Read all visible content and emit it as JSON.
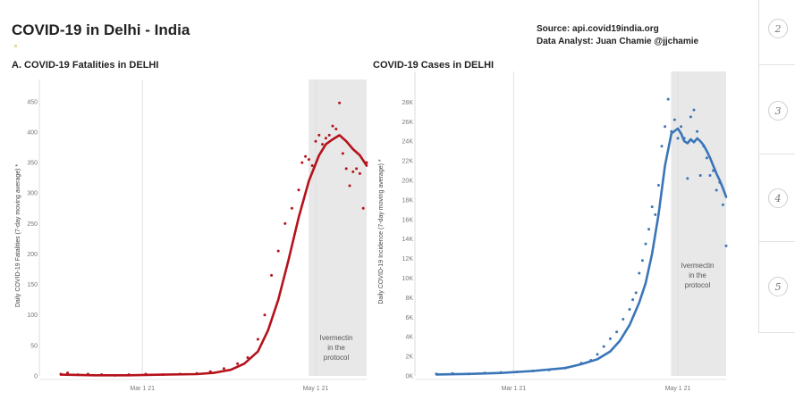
{
  "header": {
    "title": "COVID-19 in Delhi - India",
    "source_line": "Source: api.covid19india.org",
    "analyst_line": "Data Analyst:  Juan Chamie @jjchamie"
  },
  "sidebar": {
    "pages": [
      "2",
      "3",
      "4",
      "5"
    ]
  },
  "chart_data": [
    {
      "type": "line",
      "title": "A. COVID-19 Fatalities in DELHI",
      "xlabel": "",
      "ylabel": "Daily COVID-19 Fatalities (7-day moving average) *",
      "x_ticks": [
        "Mar 1 21",
        "May 1 21"
      ],
      "ylim": [
        0,
        460
      ],
      "y_ticks": [
        0,
        50,
        100,
        150,
        200,
        250,
        300,
        350,
        400,
        450
      ],
      "y_tick_labels": [
        "0",
        "50",
        "100",
        "150",
        "200",
        "250",
        "300",
        "350",
        "400",
        "450"
      ],
      "grid": "vertical reference lines at tick dates",
      "color": "#b5121b",
      "annotation": {
        "lines": [
          "Ivermectin",
          "in the",
          "protocol"
        ],
        "shaded_from_day": 74
      },
      "series": [
        {
          "kind": "points",
          "x": [
            0,
            2,
            5,
            8,
            12,
            16,
            20,
            25,
            30,
            35,
            40,
            44,
            48,
            52,
            55,
            58,
            60,
            62,
            64,
            66,
            68,
            70,
            71,
            72,
            73,
            74,
            75,
            76,
            77,
            78,
            79,
            80,
            81,
            82,
            83,
            84,
            85,
            86,
            87,
            88,
            89,
            90
          ],
          "y": [
            3,
            5,
            2,
            3,
            2,
            1,
            2,
            3,
            2,
            3,
            4,
            7,
            12,
            20,
            30,
            60,
            100,
            165,
            205,
            250,
            275,
            305,
            350,
            360,
            355,
            345,
            385,
            395,
            380,
            390,
            395,
            410,
            405,
            448,
            365,
            340,
            312,
            335,
            340,
            332,
            275,
            350
          ]
        },
        {
          "kind": "line",
          "x": [
            0,
            10,
            20,
            30,
            40,
            45,
            50,
            54,
            58,
            61,
            64,
            67,
            70,
            73,
            76,
            78,
            80,
            82,
            84,
            86,
            88,
            90
          ],
          "y": [
            2,
            1,
            1,
            2,
            3,
            5,
            10,
            20,
            40,
            75,
            125,
            190,
            260,
            320,
            362,
            380,
            388,
            395,
            385,
            372,
            362,
            345
          ]
        }
      ]
    },
    {
      "type": "line",
      "title": "COVID-19 Cases in DELHI",
      "xlabel": "",
      "ylabel": "Daily COVID-19 Incidence (7-day moving average) *",
      "x_ticks": [
        "Mar 1 21",
        "May 1 21"
      ],
      "ylim": [
        0,
        29500
      ],
      "y_ticks": [
        0,
        2000,
        4000,
        6000,
        8000,
        10000,
        12000,
        14000,
        16000,
        18000,
        20000,
        22000,
        24000,
        26000,
        28000
      ],
      "y_tick_labels": [
        "0K",
        "2K",
        "4K",
        "6K",
        "8K",
        "10K",
        "12K",
        "14K",
        "16K",
        "18K",
        "20K",
        "22K",
        "24K",
        "26K",
        "28K"
      ],
      "grid": "vertical reference lines at tick dates",
      "color": "#3a75b8",
      "annotation": {
        "lines": [
          "Ivermectin",
          "in the",
          "protocol"
        ],
        "shaded_from_day": 74
      },
      "series": [
        {
          "kind": "points",
          "x": [
            0,
            5,
            10,
            15,
            20,
            25,
            30,
            35,
            40,
            45,
            48,
            50,
            52,
            54,
            56,
            58,
            60,
            61,
            62,
            63,
            64,
            65,
            66,
            67,
            68,
            69,
            70,
            71,
            72,
            73,
            74,
            75,
            76,
            77,
            78,
            79,
            80,
            81,
            82,
            83,
            84,
            85,
            86,
            87,
            88,
            89,
            90
          ],
          "y": [
            200,
            250,
            200,
            300,
            350,
            400,
            500,
            600,
            800,
            1300,
            1600,
            2200,
            3000,
            3800,
            4500,
            5800,
            6800,
            7800,
            8500,
            10500,
            11800,
            13500,
            15000,
            17300,
            16500,
            19500,
            23500,
            25500,
            28300,
            25000,
            26200,
            24300,
            25500,
            24300,
            20200,
            26500,
            27200,
            25000,
            20500,
            23500,
            22300,
            20500,
            21000,
            19000,
            19800,
            17500,
            13300
          ]
        },
        {
          "kind": "line",
          "x": [
            0,
            10,
            20,
            30,
            40,
            45,
            50,
            54,
            57,
            60,
            63,
            65,
            67,
            69,
            71,
            73,
            75,
            76,
            77,
            78,
            79,
            80,
            81,
            82,
            83,
            84,
            85,
            86,
            87,
            88,
            89,
            90
          ],
          "y": [
            150,
            200,
            300,
            500,
            800,
            1200,
            1700,
            2500,
            3600,
            5200,
            7500,
            9500,
            12500,
            16500,
            21500,
            24800,
            25300,
            24800,
            24000,
            23800,
            24200,
            23900,
            24300,
            24000,
            23600,
            23000,
            22300,
            21500,
            20700,
            20000,
            19200,
            18300
          ]
        }
      ]
    }
  ]
}
